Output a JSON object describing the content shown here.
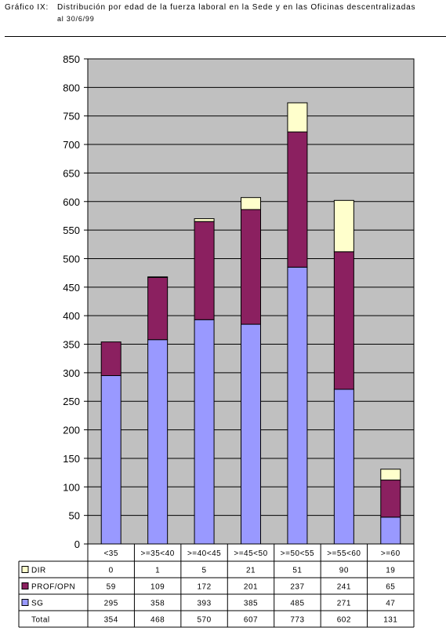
{
  "header": {
    "label": "Gráfico IX:",
    "title": "Distribución por edad de la fuerza laboral en la Sede y en las Oficinas descentralizadas",
    "date": "al 30/6/99"
  },
  "colors": {
    "DIR": "#FFFFCC",
    "PROF/OPN": "#8B2060",
    "SG": "#9999FF",
    "plot_bg": "#C0C0C0"
  },
  "chart_data": {
    "type": "bar",
    "stacked": true,
    "title": "Distribución por edad de la fuerza laboral en la Sede y en las Oficinas descentralizadas",
    "categories": [
      "<35",
      ">=35<40",
      ">=40<45",
      ">=45<50",
      ">=50<55",
      ">=55<60",
      ">=60"
    ],
    "series": [
      {
        "name": "SG",
        "values": [
          295,
          358,
          393,
          385,
          485,
          271,
          47
        ]
      },
      {
        "name": "PROF/OPN",
        "values": [
          59,
          109,
          172,
          201,
          237,
          241,
          65
        ]
      },
      {
        "name": "DIR",
        "values": [
          0,
          1,
          5,
          21,
          51,
          90,
          19
        ]
      }
    ],
    "table_rows": [
      {
        "name": "DIR",
        "values": [
          "0",
          "1",
          "5",
          "21",
          "51",
          "90",
          "19"
        ]
      },
      {
        "name": "PROF/OPN",
        "values": [
          "59",
          "109",
          "172",
          "201",
          "237",
          "241",
          "65"
        ]
      },
      {
        "name": "SG",
        "values": [
          "295",
          "358",
          "393",
          "385",
          "485",
          "271",
          "47"
        ]
      },
      {
        "name": "Total",
        "values": [
          "354",
          "468",
          "570",
          "607",
          "773",
          "602",
          "131"
        ]
      }
    ],
    "ylim": [
      0,
      850
    ],
    "yticks": [
      "0",
      "50",
      "100",
      "150",
      "200",
      "250",
      "300",
      "350",
      "400",
      "450",
      "500",
      "550",
      "600",
      "650",
      "700",
      "750",
      "800",
      "850"
    ],
    "grid": true,
    "legend": "data-table"
  }
}
